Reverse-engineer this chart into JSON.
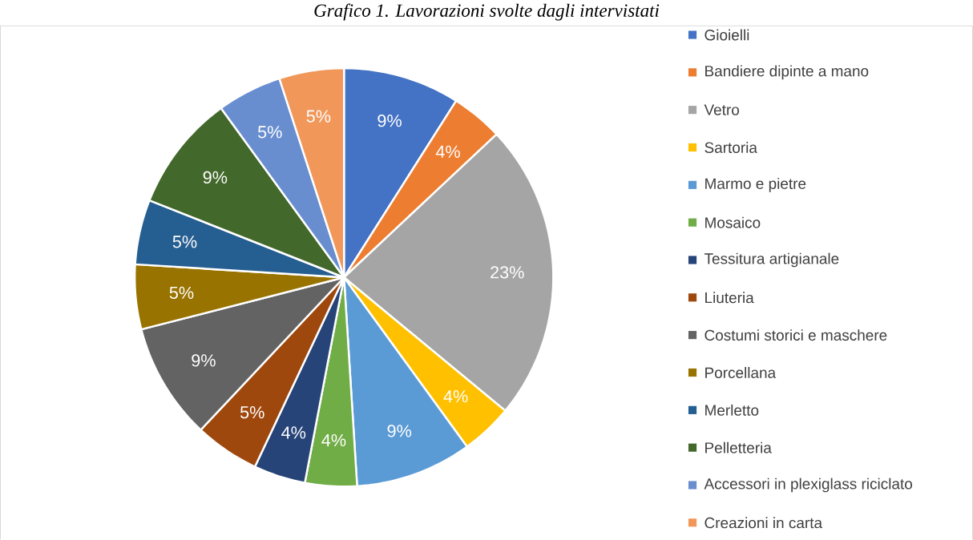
{
  "chart_data": {
    "type": "pie",
    "title": "Grafico 1. Lavorazioni svolte dagli intervistati",
    "categories": [
      "Gioielli",
      "Bandiere dipinte a mano",
      "Vetro",
      "Sartoria",
      "Marmo e pietre",
      "Mosaico",
      "Tessitura artigianale",
      "Liuteria",
      "Costumi storici e maschere",
      "Porcellana",
      "Merletto",
      "Pelletteria",
      "Accessori in plexiglass riciclato",
      "Creazioni in carta"
    ],
    "values": [
      9,
      4,
      23,
      4,
      9,
      4,
      4,
      5,
      9,
      5,
      5,
      9,
      5,
      5
    ],
    "colors": [
      "#4472c4",
      "#ed7d31",
      "#a5a5a5",
      "#ffc000",
      "#5b9bd5",
      "#70ad47",
      "#264478",
      "#9e480e",
      "#636363",
      "#997300",
      "#255e91",
      "#43682b",
      "#698ed0",
      "#f1975a"
    ],
    "value_labels": [
      "9%",
      "4%",
      "23%",
      "4%",
      "9%",
      "4%",
      "4%",
      "5%",
      "9%",
      "5%",
      "5%",
      "9%",
      "5%",
      "5%"
    ],
    "legend": "right"
  }
}
